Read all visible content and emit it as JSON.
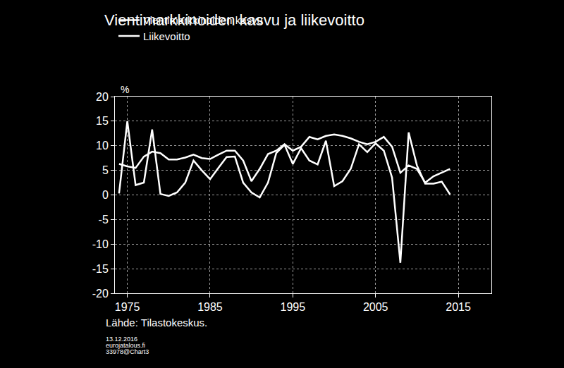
{
  "chart_data": {
    "type": "line",
    "title": "Vientimarkkinoiden kasvu ja liikevoitto",
    "x": [
      1974,
      1975,
      1976,
      1977,
      1978,
      1979,
      1980,
      1981,
      1982,
      1983,
      1984,
      1985,
      1986,
      1987,
      1988,
      1989,
      1990,
      1991,
      1992,
      1993,
      1994,
      1995,
      1996,
      1997,
      1998,
      1999,
      2000,
      2001,
      2002,
      2003,
      2004,
      2005,
      2006,
      2007,
      2008,
      2009,
      2010,
      2011,
      2012,
      2013,
      2014
    ],
    "series": [
      {
        "name": "Vientimarkkinoiden kasvu",
        "color": "#ffffff",
        "values": [
          0.3,
          15.0,
          2.0,
          2.5,
          13.3,
          0.2,
          -0.2,
          0.5,
          2.5,
          7.0,
          5.0,
          3.2,
          5.5,
          7.7,
          7.8,
          2.5,
          0.5,
          -0.5,
          2.5,
          8.5,
          10.2,
          6.3,
          9.5,
          7.0,
          6.2,
          11.0,
          1.8,
          2.8,
          5.3,
          10.3,
          8.7,
          10.5,
          9.0,
          3.5,
          -13.8,
          12.7,
          6.0,
          2.3,
          2.3,
          2.7,
          0.1
        ]
      },
      {
        "name": "Liikevoitto",
        "color": "#ffffff",
        "values": [
          6.3,
          5.8,
          5.5,
          7.8,
          8.8,
          8.5,
          7.2,
          7.2,
          7.6,
          8.2,
          7.5,
          7.3,
          8.2,
          9.0,
          9.0,
          7.0,
          2.8,
          5.3,
          8.3,
          9.0,
          10.3,
          9.0,
          9.8,
          11.8,
          11.3,
          12.0,
          12.3,
          12.0,
          11.5,
          10.8,
          10.3,
          10.8,
          11.8,
          9.8,
          4.5,
          6.0,
          5.3,
          2.5,
          3.8,
          4.5,
          5.3
        ]
      }
    ],
    "xlim": [
      1973.5,
      2019
    ],
    "xticks": [
      1975,
      1985,
      1995,
      2005,
      2015
    ],
    "ylim": [
      -20,
      20
    ],
    "yticks": [
      -20,
      -15,
      -10,
      -5,
      0,
      5,
      10,
      15,
      20
    ],
    "grid": true,
    "legend": "top",
    "annotations": [
      "%",
      "Lähde: Tilastokeskus.",
      "13.12.2016",
      "eurojatalous.fi",
      "33978@Chart3"
    ]
  }
}
